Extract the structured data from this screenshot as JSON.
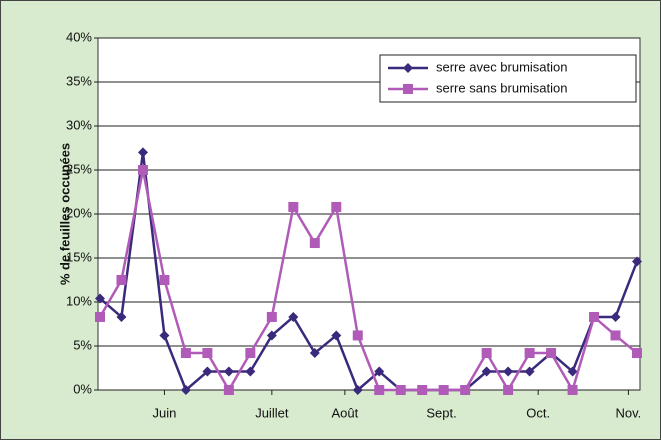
{
  "chart_data": {
    "type": "line",
    "y_label": "% de feuilles occupées",
    "x": [
      0,
      1,
      2,
      3,
      4,
      5,
      6,
      7,
      8,
      9,
      10,
      11,
      12,
      13,
      14,
      15,
      16,
      17,
      18,
      19,
      20,
      21,
      22,
      23,
      24,
      25
    ],
    "xlim": [
      0,
      25
    ],
    "xticks": [
      {
        "value": 3,
        "label": "Juin"
      },
      {
        "value": 8,
        "label": "Juillet"
      },
      {
        "value": 11.4,
        "label": "Août"
      },
      {
        "value": 15.9,
        "label": "Sept."
      },
      {
        "value": 20.4,
        "label": "Oct."
      },
      {
        "value": 24.6,
        "label": "Nov."
      }
    ],
    "ylim": [
      0,
      40
    ],
    "yticks": [
      {
        "value": 0,
        "label": "0%"
      },
      {
        "value": 5,
        "label": "5%"
      },
      {
        "value": 10,
        "label": "10%"
      },
      {
        "value": 15,
        "label": "15%"
      },
      {
        "value": 20,
        "label": "20%"
      },
      {
        "value": 25,
        "label": "25%"
      },
      {
        "value": 30,
        "label": "30%"
      },
      {
        "value": 35,
        "label": "35%"
      },
      {
        "value": 40,
        "label": "40%"
      }
    ],
    "grid": true,
    "legend": "top-right",
    "series": [
      {
        "name": "serre avec brumisation",
        "color": "#3b2a7c",
        "marker": "diamond",
        "values": [
          10.4,
          8.3,
          27,
          6.2,
          0,
          2.1,
          2.1,
          2.1,
          6.2,
          8.3,
          4.2,
          6.2,
          0,
          2.1,
          0,
          0,
          0,
          0,
          2.1,
          2.1,
          2.1,
          4.2,
          2.1,
          8.3,
          8.3,
          14.6
        ]
      },
      {
        "name": "serre sans brumisation",
        "color": "#b15bb8",
        "marker": "square",
        "values": [
          8.3,
          12.5,
          25,
          12.5,
          4.2,
          4.2,
          0,
          4.2,
          8.3,
          20.8,
          16.7,
          20.8,
          6.2,
          0,
          0,
          0,
          0,
          0,
          4.2,
          0,
          4.2,
          4.2,
          0,
          8.3,
          6.2,
          4.2
        ]
      }
    ]
  }
}
